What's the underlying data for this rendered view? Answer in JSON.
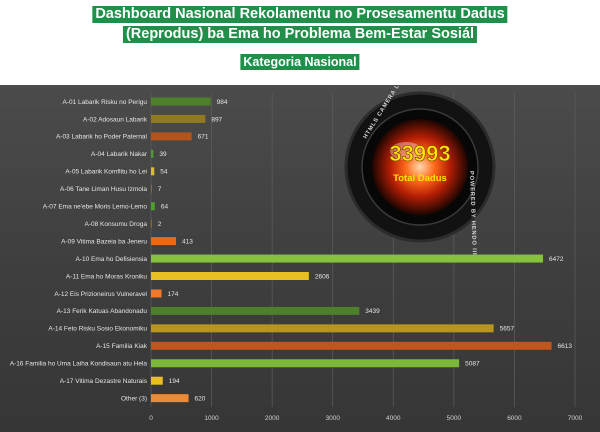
{
  "header": {
    "title_line1": "Dashboard Nasional Rekolamentu no Prosesamentu Dadus",
    "title_line2": "(Reprodus) ba Ema ho Problema Bem-Estar Sosiál",
    "subtitle": "Kategoria  Nasional"
  },
  "badge": {
    "total_value": "33993",
    "total_label": "Total Dadus",
    "ring_text_top": "HTMLS CAMERA LENS",
    "ring_text_right": "POWERED BY HENDO III"
  },
  "chart_data": {
    "type": "bar",
    "orientation": "horizontal",
    "categories": [
      "A-01 Labarik Risku no Perigu",
      "A-02 Adosaun Labarik",
      "A-03 Labarik ho Poder Paternal",
      "A-04 Labarik Nakar",
      "A-05 Labarik Komflitu ho Lei",
      "A-06 Tane Liman Husu Izmola",
      "A-07 Ema ne'ebe Moris Lemo-Lemo",
      "A-08 Konsumu Droga",
      "A-09 Vitima Bazeia ba Jeneru",
      "A-10 Ema ho Defisiensia",
      "A-11 Ema ho Moras Kroniku",
      "A-12 Eis Prizioneirus Vulneravel",
      "A-13 Ferik Katuas Abandonadu",
      "A-14 Feto Risku Sosio Ekonomiku",
      "A-15 Familia Kiak",
      "A-16 Familia ho Uma Laiha Kondisaun atu Hela",
      "A-17 Vitima Dezastre Naturais",
      "Other (3)"
    ],
    "values": [
      984,
      897,
      671,
      39,
      54,
      7,
      64,
      2,
      413,
      6472,
      2606,
      174,
      3439,
      5657,
      6613,
      5087,
      194,
      620
    ],
    "value_labels": [
      "984",
      "897",
      "671",
      "39",
      "54",
      "7",
      "64",
      "2",
      "413",
      "6472",
      "2606",
      "174",
      "3439",
      "5657",
      "6613",
      "5087",
      "194",
      "620"
    ],
    "bar_colors": [
      "#4e7f2a",
      "#8f7a1e",
      "#b3541b",
      "#4f9e2d",
      "#d8c21e",
      "#8f7a1e",
      "#4f9e2d",
      "#8f7a1e",
      "#e56a1c",
      "#86c23e",
      "#e8c021",
      "#f07a2c",
      "#4e7f2a",
      "#b8951f",
      "#c0561d",
      "#7cb83a",
      "#e8c021",
      "#ef8a34"
    ],
    "xlim": [
      0,
      7000
    ],
    "xticks": [
      "0",
      "1000",
      "2000",
      "3000",
      "4000",
      "5000",
      "6000",
      "7000"
    ],
    "grid": "vertical",
    "legend": "none"
  }
}
